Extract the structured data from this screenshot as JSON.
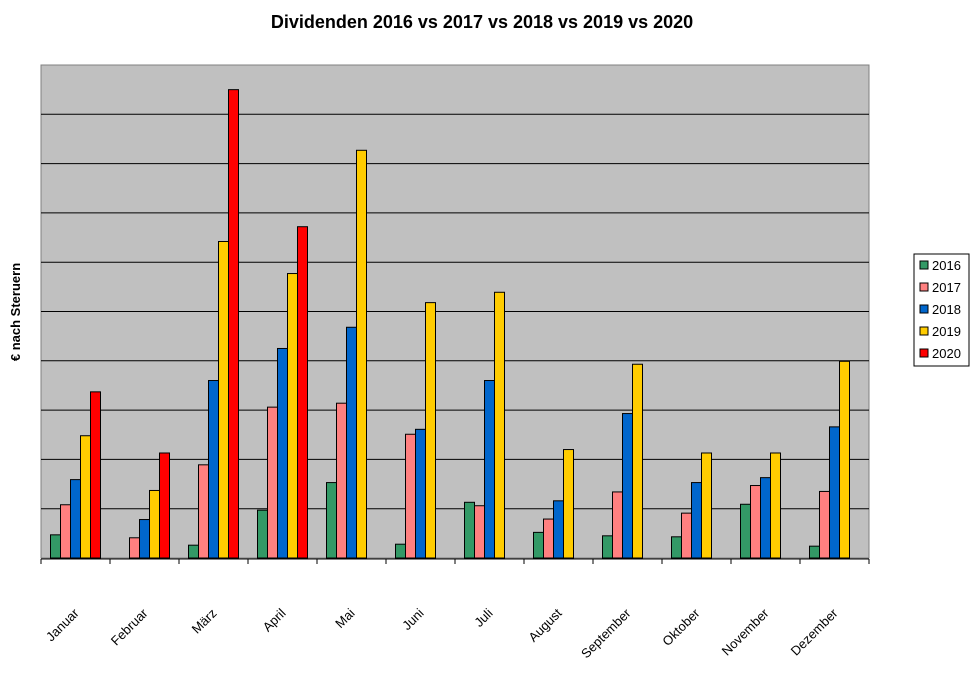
{
  "chart_data": {
    "type": "bar",
    "title": "Dividenden 2016 vs 2017 vs 2018 vs 2019 vs 2020",
    "ylabel": "€ nach Steruern",
    "xlabel": "",
    "categories": [
      "Januar",
      "Februar",
      "März",
      "April",
      "Mai",
      "Juni",
      "Juli",
      "August",
      "September",
      "Oktober",
      "November",
      "Dezember"
    ],
    "series": [
      {
        "name": "2016",
        "color": "#339966",
        "values": [
          0.47,
          0,
          0.26,
          0.97,
          1.53,
          0.28,
          1.13,
          0.52,
          0.45,
          0.43,
          1.09,
          0.24
        ]
      },
      {
        "name": "2017",
        "color": "#ff8080",
        "values": [
          1.08,
          0.41,
          1.89,
          3.06,
          3.14,
          2.51,
          1.06,
          0.79,
          1.34,
          0.91,
          1.47,
          1.35
        ]
      },
      {
        "name": "2018",
        "color": "#0066cc",
        "values": [
          1.59,
          0.78,
          3.6,
          4.25,
          4.68,
          2.61,
          3.6,
          1.16,
          2.93,
          1.53,
          1.63,
          2.66
        ]
      },
      {
        "name": "2019",
        "color": "#ffcc00",
        "values": [
          2.48,
          1.37,
          6.42,
          5.77,
          8.27,
          5.18,
          5.39,
          2.2,
          3.93,
          2.13,
          2.13,
          3.99
        ]
      },
      {
        "name": "2020",
        "color": "#ff0000",
        "values": [
          3.37,
          2.13,
          9.5,
          6.72,
          null,
          null,
          null,
          null,
          null,
          null,
          null,
          null
        ]
      }
    ],
    "ylim": [
      0,
      10
    ],
    "gridlines": [
      1,
      2,
      3,
      4,
      5,
      6,
      7,
      8,
      9
    ],
    "grid": true,
    "plot_background": "#c0c0c0",
    "legend_position": "right"
  }
}
